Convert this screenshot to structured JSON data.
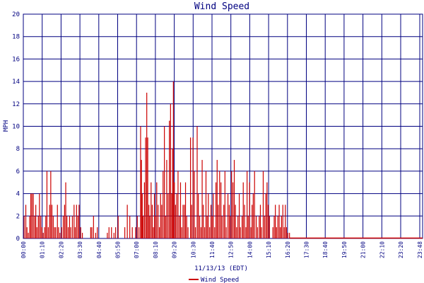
{
  "chart_data": {
    "type": "bar",
    "title": "Wind Speed",
    "xlabel": "11/13/13 (EDT)",
    "ylabel": "MPH",
    "ylim": [
      0,
      20
    ],
    "yticks": [
      0,
      2,
      4,
      6,
      8,
      10,
      12,
      14,
      16,
      18,
      20
    ],
    "xlim_hours": [
      0,
      24
    ],
    "xtick_labels": [
      "00:00",
      "01:10",
      "02:20",
      "03:30",
      "04:40",
      "05:50",
      "07:00",
      "08:10",
      "09:20",
      "10:30",
      "11:40",
      "12:50",
      "14:00",
      "15:10",
      "16:20",
      "17:30",
      "18:40",
      "19:50",
      "21:00",
      "22:10",
      "23:20",
      "23:48"
    ],
    "grid": true,
    "legend_position": "bottom-center",
    "colors": {
      "series": "#cc0000",
      "grid": "#000080",
      "text": "#000080"
    },
    "series": [
      {
        "name": "Wind Speed",
        "points": [
          [
            0.05,
            2
          ],
          [
            0.15,
            3
          ],
          [
            0.22,
            1
          ],
          [
            0.3,
            0.5
          ],
          [
            0.38,
            2
          ],
          [
            0.45,
            4
          ],
          [
            0.52,
            4
          ],
          [
            0.6,
            4
          ],
          [
            0.68,
            2
          ],
          [
            0.75,
            3
          ],
          [
            0.82,
            1
          ],
          [
            0.9,
            2
          ],
          [
            0.97,
            4
          ],
          [
            1.05,
            2
          ],
          [
            1.12,
            1
          ],
          [
            1.2,
            0.5
          ],
          [
            1.28,
            1
          ],
          [
            1.35,
            2
          ],
          [
            1.42,
            6
          ],
          [
            1.5,
            1
          ],
          [
            1.58,
            3
          ],
          [
            1.65,
            6
          ],
          [
            1.72,
            3
          ],
          [
            1.8,
            2
          ],
          [
            1.88,
            1
          ],
          [
            1.95,
            1
          ],
          [
            2.05,
            3
          ],
          [
            2.12,
            1
          ],
          [
            2.2,
            0.5
          ],
          [
            2.3,
            1
          ],
          [
            2.4,
            2
          ],
          [
            2.48,
            3
          ],
          [
            2.55,
            5
          ],
          [
            2.62,
            2
          ],
          [
            2.7,
            1
          ],
          [
            2.78,
            2
          ],
          [
            2.85,
            1
          ],
          [
            2.95,
            2
          ],
          [
            3.05,
            3
          ],
          [
            3.12,
            1
          ],
          [
            3.2,
            3
          ],
          [
            3.28,
            2
          ],
          [
            3.35,
            3
          ],
          [
            3.45,
            1
          ],
          [
            3.55,
            0.5
          ],
          [
            4.05,
            1
          ],
          [
            4.12,
            1
          ],
          [
            4.22,
            2
          ],
          [
            4.35,
            0.5
          ],
          [
            4.45,
            1
          ],
          [
            5.05,
            0.5
          ],
          [
            5.15,
            1
          ],
          [
            5.3,
            1
          ],
          [
            5.45,
            0.5
          ],
          [
            5.55,
            1
          ],
          [
            5.7,
            2
          ],
          [
            6.1,
            1
          ],
          [
            6.25,
            3
          ],
          [
            6.4,
            2
          ],
          [
            6.55,
            1
          ],
          [
            6.75,
            1
          ],
          [
            6.85,
            2
          ],
          [
            6.95,
            1
          ],
          [
            7.05,
            10
          ],
          [
            7.1,
            7
          ],
          [
            7.15,
            4
          ],
          [
            7.2,
            2
          ],
          [
            7.28,
            5
          ],
          [
            7.35,
            9
          ],
          [
            7.42,
            13
          ],
          [
            7.48,
            9
          ],
          [
            7.55,
            3
          ],
          [
            7.6,
            2
          ],
          [
            7.68,
            5
          ],
          [
            7.75,
            3
          ],
          [
            7.82,
            1
          ],
          [
            7.88,
            4
          ],
          [
            7.95,
            2
          ],
          [
            8.02,
            5
          ],
          [
            8.1,
            3
          ],
          [
            8.18,
            1
          ],
          [
            8.25,
            4
          ],
          [
            8.32,
            3
          ],
          [
            8.4,
            6
          ],
          [
            8.48,
            10
          ],
          [
            8.55,
            2
          ],
          [
            8.62,
            7
          ],
          [
            8.7,
            4
          ],
          [
            8.78,
            10.5
          ],
          [
            8.85,
            12
          ],
          [
            8.92,
            4
          ],
          [
            8.97,
            8
          ],
          [
            9.02,
            14
          ],
          [
            9.08,
            5
          ],
          [
            9.15,
            3
          ],
          [
            9.22,
            4
          ],
          [
            9.3,
            6
          ],
          [
            9.38,
            2
          ],
          [
            9.45,
            5
          ],
          [
            9.52,
            1
          ],
          [
            9.6,
            3
          ],
          [
            9.68,
            3
          ],
          [
            9.75,
            5
          ],
          [
            9.82,
            2
          ],
          [
            9.9,
            1
          ],
          [
            10.05,
            9
          ],
          [
            10.12,
            3
          ],
          [
            10.2,
            9
          ],
          [
            10.28,
            6
          ],
          [
            10.35,
            1
          ],
          [
            10.45,
            10
          ],
          [
            10.52,
            4
          ],
          [
            10.6,
            2
          ],
          [
            10.68,
            1
          ],
          [
            10.75,
            7
          ],
          [
            10.82,
            3
          ],
          [
            10.9,
            1
          ],
          [
            10.98,
            6
          ],
          [
            11.05,
            2
          ],
          [
            11.12,
            4
          ],
          [
            11.2,
            1
          ],
          [
            11.28,
            3
          ],
          [
            11.35,
            2
          ],
          [
            11.42,
            4
          ],
          [
            11.5,
            1
          ],
          [
            11.58,
            5
          ],
          [
            11.65,
            7
          ],
          [
            11.72,
            3
          ],
          [
            11.8,
            6
          ],
          [
            11.88,
            5
          ],
          [
            11.95,
            2
          ],
          [
            12.05,
            3
          ],
          [
            12.12,
            6
          ],
          [
            12.2,
            1
          ],
          [
            12.3,
            4
          ],
          [
            12.38,
            3
          ],
          [
            12.45,
            2
          ],
          [
            12.52,
            6
          ],
          [
            12.6,
            5
          ],
          [
            12.68,
            7
          ],
          [
            12.75,
            3
          ],
          [
            12.82,
            1
          ],
          [
            12.9,
            2
          ],
          [
            12.98,
            4
          ],
          [
            13.05,
            1
          ],
          [
            13.15,
            2
          ],
          [
            13.22,
            5
          ],
          [
            13.3,
            3
          ],
          [
            13.38,
            1
          ],
          [
            13.45,
            6
          ],
          [
            13.52,
            2
          ],
          [
            13.6,
            5
          ],
          [
            13.68,
            1
          ],
          [
            13.75,
            3
          ],
          [
            13.82,
            4
          ],
          [
            13.9,
            6
          ],
          [
            14.0,
            2
          ],
          [
            14.08,
            1
          ],
          [
            14.18,
            2
          ],
          [
            14.25,
            3
          ],
          [
            14.32,
            1
          ],
          [
            14.42,
            6
          ],
          [
            14.5,
            2
          ],
          [
            14.58,
            4
          ],
          [
            14.65,
            5
          ],
          [
            14.72,
            3
          ],
          [
            14.8,
            2
          ],
          [
            15.0,
            1
          ],
          [
            15.08,
            2
          ],
          [
            15.15,
            3
          ],
          [
            15.22,
            1
          ],
          [
            15.3,
            2
          ],
          [
            15.38,
            3
          ],
          [
            15.45,
            1
          ],
          [
            15.52,
            2
          ],
          [
            15.6,
            3
          ],
          [
            15.68,
            1
          ],
          [
            15.75,
            3
          ],
          [
            15.82,
            1
          ],
          [
            15.9,
            0.5
          ],
          [
            16.0,
            0.5
          ]
        ]
      }
    ]
  }
}
